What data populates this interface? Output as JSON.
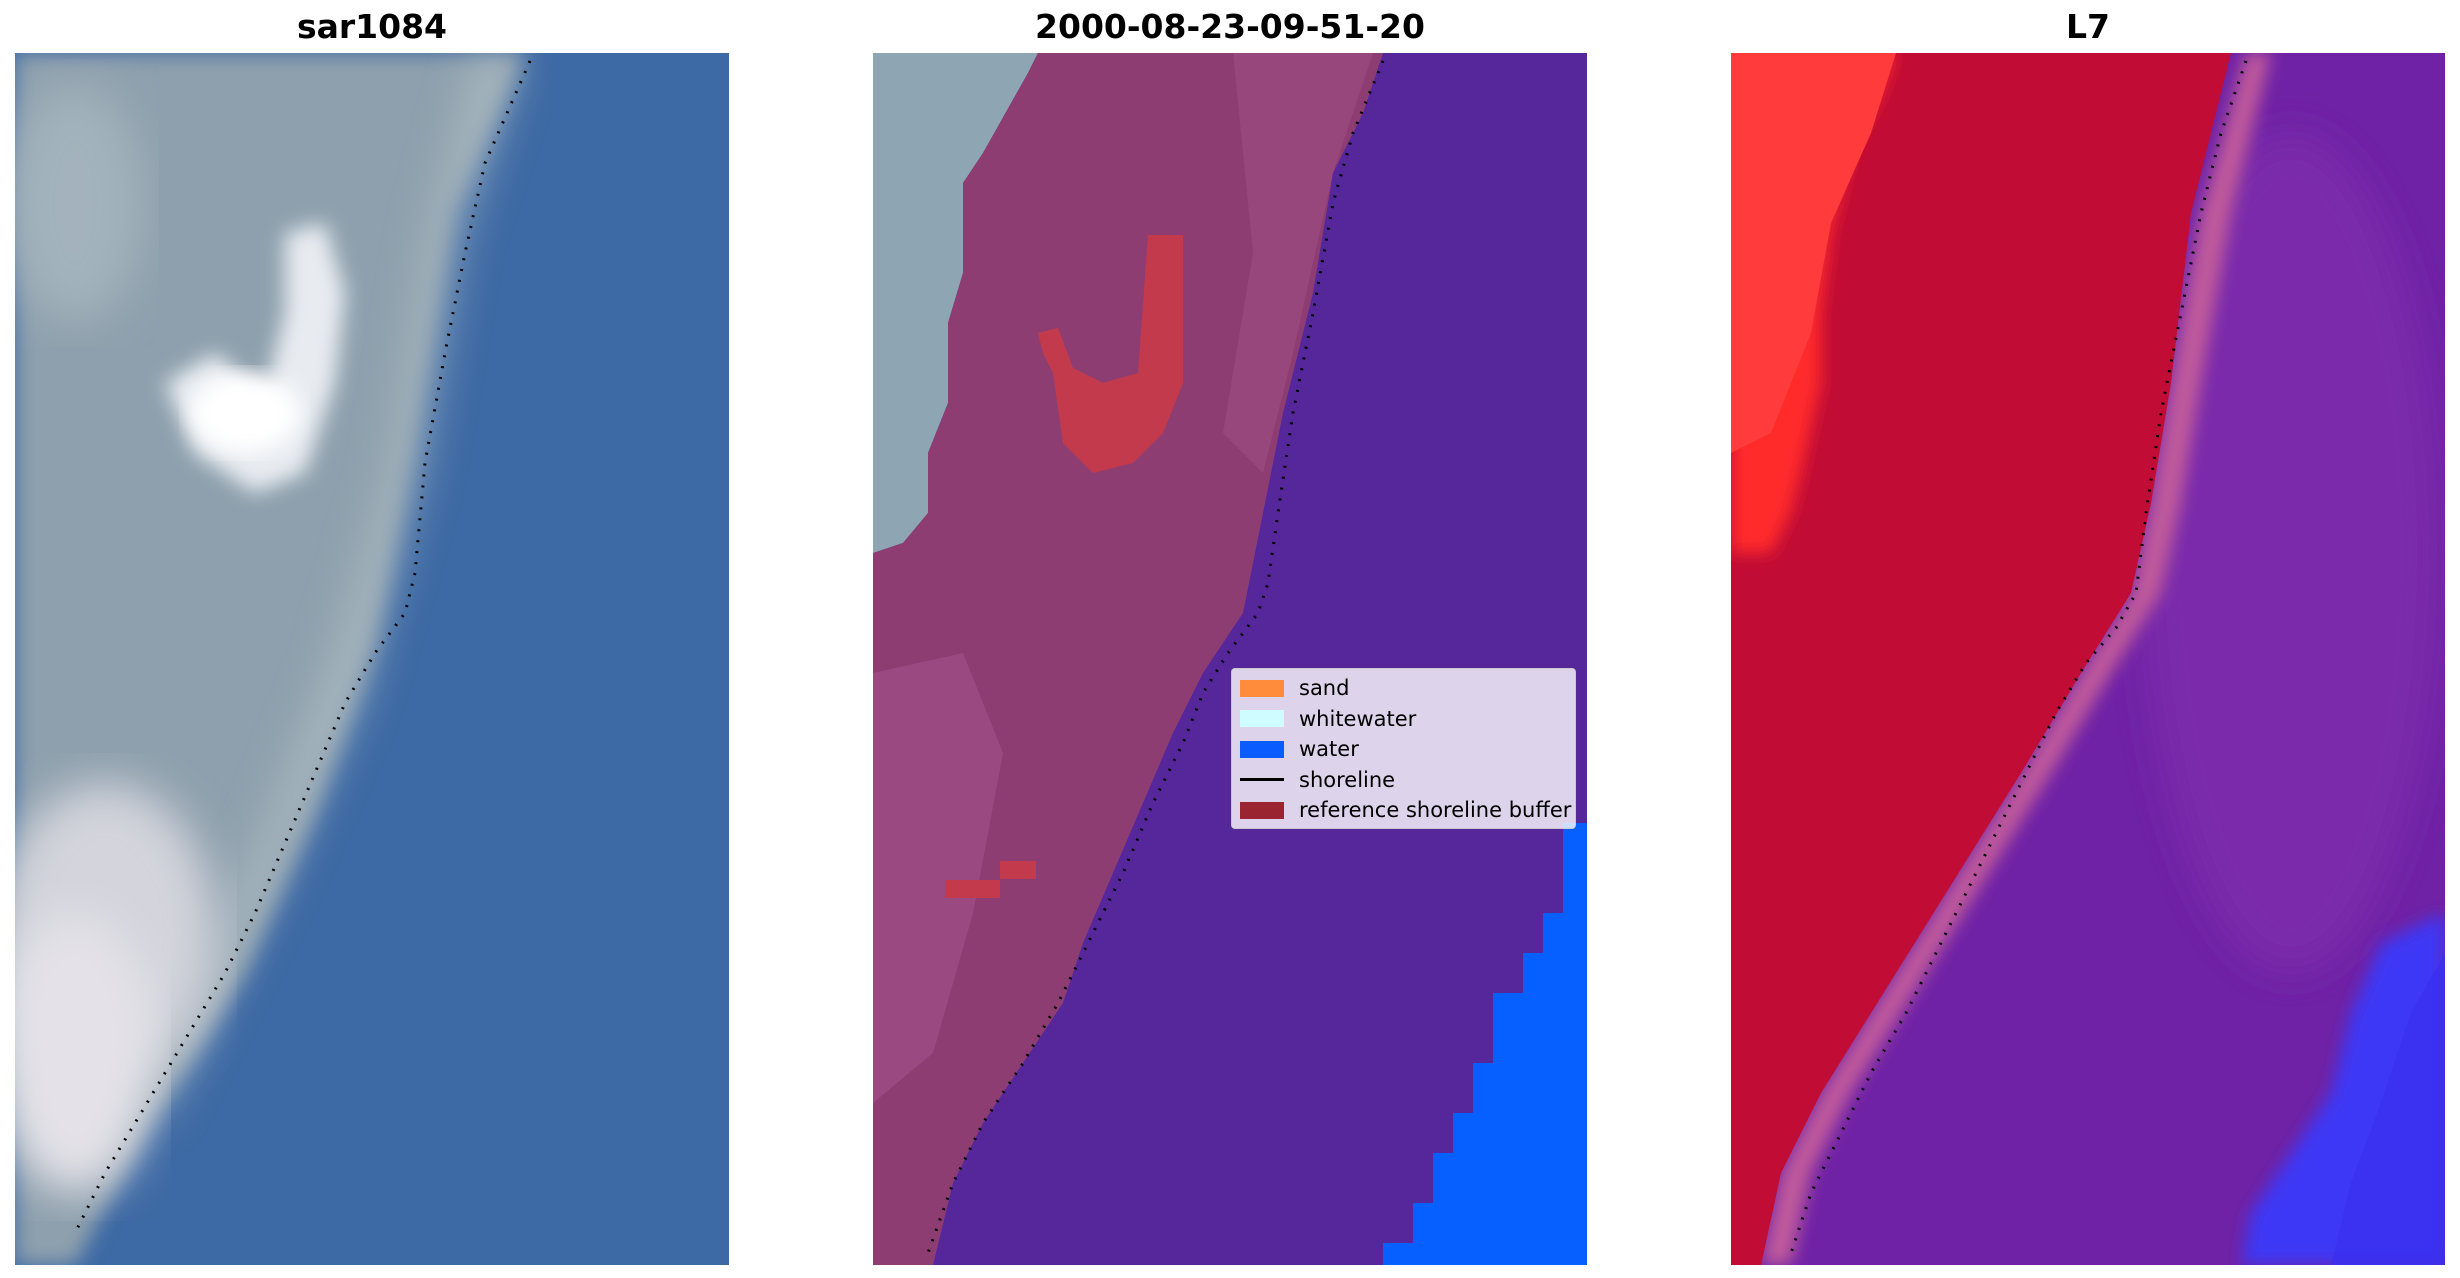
{
  "panels": [
    {
      "title": "sar1084",
      "kind": "rgb-satellite-image",
      "colors": {
        "land": "#8fa0ad",
        "water": "#3d6aa5",
        "whitewater": "#eef0f3"
      }
    },
    {
      "title": "2000-08-23-09-51-20",
      "kind": "classified-image",
      "colors": {
        "sand_overlay": "#8e3d73",
        "water_overlay": "#55279a",
        "water_pure": "#0560ff",
        "buffer_spot": "#c33a4d",
        "unclassified": "#8fa5b4"
      }
    },
    {
      "title": "L7",
      "kind": "mndwi-image",
      "colors": {
        "land": "#c10c35",
        "bright_land": "#ff2a2a",
        "water": "#6f22a5",
        "deep_water": "#3e37f5",
        "transition": "#c05a9b"
      }
    }
  ],
  "legend": {
    "items": [
      {
        "label": "sand",
        "color": "#ff8c3a",
        "kind": "patch"
      },
      {
        "label": "whitewater",
        "color": "#cffdff",
        "kind": "patch"
      },
      {
        "label": "water",
        "color": "#0a5cff",
        "kind": "patch"
      },
      {
        "label": "shoreline",
        "color": "#000000",
        "kind": "line"
      },
      {
        "label": "reference shoreline buffer",
        "color": "#9a2430",
        "kind": "patch"
      }
    ]
  }
}
